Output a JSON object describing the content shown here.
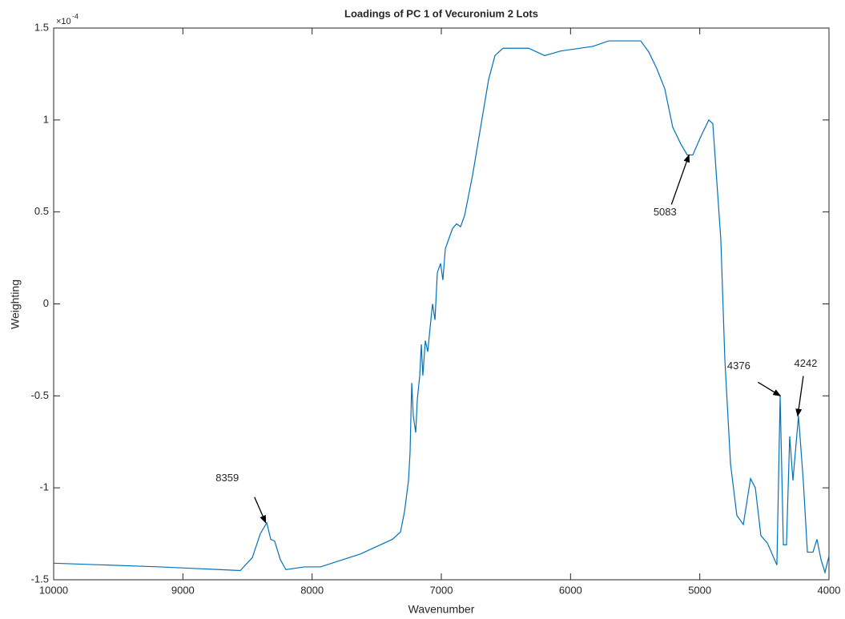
{
  "chart_data": {
    "type": "line",
    "title": "Loadings of PC 1 of Vecuronium 2 Lots",
    "xlabel": "Wavenumber",
    "ylabel": "Weighting",
    "y_multiplier": "×10",
    "y_exponent": "-4",
    "xlim": [
      10000,
      4000
    ],
    "xticks": [
      10000,
      9000,
      8000,
      7000,
      6000,
      5000,
      4000
    ],
    "ylim": [
      -1.5,
      1.5
    ],
    "yticks": [
      -1.5,
      -1,
      -0.5,
      0,
      0.5,
      1,
      1.5
    ],
    "grid": false,
    "series": [
      {
        "name": "PC 1",
        "color": "#0072BD",
        "x": [
          10000,
          9176,
          8556,
          8463,
          8401,
          8351,
          8320,
          8290,
          8246,
          8203,
          8060,
          7936,
          7626,
          7378,
          7316,
          7285,
          7254,
          7242,
          7229,
          7217,
          7198,
          7186,
          7167,
          7155,
          7143,
          7124,
          7105,
          7087,
          7068,
          7049,
          7031,
          7006,
          6988,
          6969,
          6944,
          6913,
          6882,
          6851,
          6820,
          6758,
          6696,
          6634,
          6585,
          6523,
          6324,
          6200,
          6076,
          5828,
          5704,
          5457,
          5395,
          5333,
          5271,
          5209,
          5147,
          5097,
          5054,
          4992,
          4930,
          4899,
          4837,
          4806,
          4762,
          4713,
          4663,
          4607,
          4570,
          4527,
          4477,
          4403,
          4378,
          4353,
          4329,
          4304,
          4279,
          4236,
          4199,
          4167,
          4124,
          4093,
          4062,
          4031,
          4000
        ],
        "values": [
          -1.41,
          -1.43,
          -1.45,
          -1.38,
          -1.25,
          -1.19,
          -1.28,
          -1.29,
          -1.39,
          -1.445,
          -1.43,
          -1.43,
          -1.36,
          -1.28,
          -1.24,
          -1.13,
          -0.96,
          -0.81,
          -0.43,
          -0.61,
          -0.7,
          -0.52,
          -0.39,
          -0.22,
          -0.39,
          -0.2,
          -0.26,
          -0.13,
          0,
          -0.087,
          0.17,
          0.22,
          0.13,
          0.3,
          0.35,
          0.41,
          0.435,
          0.42,
          0.48,
          0.7,
          0.96,
          1.22,
          1.35,
          1.39,
          1.39,
          1.35,
          1.375,
          1.4,
          1.43,
          1.43,
          1.37,
          1.28,
          1.17,
          0.96,
          0.87,
          0.81,
          0.81,
          0.91,
          1.0,
          0.98,
          0.35,
          -0.3,
          -0.87,
          -1.15,
          -1.2,
          -0.95,
          -1.0,
          -1.26,
          -1.3,
          -1.42,
          -0.5,
          -1.31,
          -1.31,
          -0.72,
          -0.96,
          -0.61,
          -0.96,
          -1.35,
          -1.35,
          -1.28,
          -1.39,
          -1.46,
          -1.37
        ]
      }
    ],
    "annotations": [
      {
        "label": "8359",
        "x": 8359,
        "y": -1.19
      },
      {
        "label": "5083",
        "x": 5083,
        "y": 0.81
      },
      {
        "label": "4376",
        "x": 4376,
        "y": -0.5
      },
      {
        "label": "4242",
        "x": 4242,
        "y": -0.61
      }
    ]
  }
}
